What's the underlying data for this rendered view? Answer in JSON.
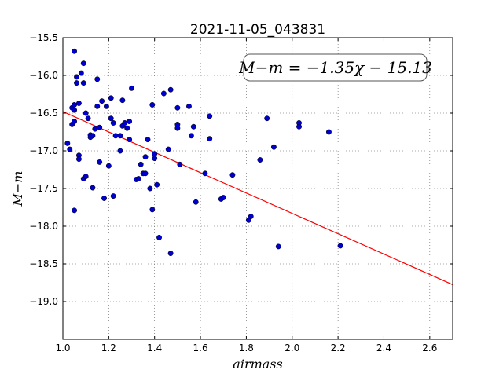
{
  "chart_data": {
    "type": "scatter",
    "title": "2021-11-05_043831",
    "xlabel": "airmass",
    "ylabel": "M−m",
    "xlim": [
      1.0,
      2.7
    ],
    "ylim": [
      -15.5,
      -19.5
    ],
    "y_inverted": true,
    "grid": true,
    "x_ticks": [
      "1.0",
      "1.2",
      "1.4",
      "1.6",
      "1.8",
      "2.0",
      "2.2",
      "2.4",
      "2.6"
    ],
    "y_ticks": [
      "−15.5",
      "−16.0",
      "−16.5",
      "−17.0",
      "−17.5",
      "−18.0",
      "−18.5",
      "−19.0"
    ],
    "annotation": "M−m = −1.35χ − 15.13",
    "fit_line": {
      "slope": -1.35,
      "intercept": -15.13,
      "color": "#ff0000"
    },
    "point_color": "#0000cc",
    "points": [
      [
        1.02,
        -16.9
      ],
      [
        1.03,
        -16.98
      ],
      [
        1.04,
        -16.65
      ],
      [
        1.04,
        -16.43
      ],
      [
        1.05,
        -16.39
      ],
      [
        1.05,
        -16.46
      ],
      [
        1.05,
        -16.61
      ],
      [
        1.05,
        -17.79
      ],
      [
        1.05,
        -15.68
      ],
      [
        1.06,
        -16.1
      ],
      [
        1.06,
        -16.02
      ],
      [
        1.07,
        -16.37
      ],
      [
        1.07,
        -17.06
      ],
      [
        1.07,
        -17.11
      ],
      [
        1.08,
        -15.97
      ],
      [
        1.09,
        -15.84
      ],
      [
        1.09,
        -16.1
      ],
      [
        1.09,
        -17.37
      ],
      [
        1.1,
        -17.34
      ],
      [
        1.1,
        -16.5
      ],
      [
        1.11,
        -16.57
      ],
      [
        1.12,
        -16.79
      ],
      [
        1.12,
        -16.82
      ],
      [
        1.13,
        -16.8
      ],
      [
        1.13,
        -17.49
      ],
      [
        1.14,
        -16.71
      ],
      [
        1.15,
        -16.41
      ],
      [
        1.15,
        -16.05
      ],
      [
        1.16,
        -17.15
      ],
      [
        1.16,
        -16.69
      ],
      [
        1.17,
        -16.34
      ],
      [
        1.18,
        -17.63
      ],
      [
        1.19,
        -16.41
      ],
      [
        1.2,
        -17.2
      ],
      [
        1.21,
        -16.3
      ],
      [
        1.21,
        -16.57
      ],
      [
        1.22,
        -16.63
      ],
      [
        1.22,
        -17.6
      ],
      [
        1.23,
        -16.8
      ],
      [
        1.25,
        -16.8
      ],
      [
        1.25,
        -17.0
      ],
      [
        1.26,
        -16.67
      ],
      [
        1.26,
        -16.33
      ],
      [
        1.27,
        -16.63
      ],
      [
        1.28,
        -16.7
      ],
      [
        1.29,
        -16.85
      ],
      [
        1.29,
        -16.61
      ],
      [
        1.3,
        -16.17
      ],
      [
        1.32,
        -17.38
      ],
      [
        1.33,
        -17.37
      ],
      [
        1.34,
        -17.18
      ],
      [
        1.35,
        -17.3
      ],
      [
        1.36,
        -17.08
      ],
      [
        1.36,
        -17.3
      ],
      [
        1.37,
        -16.85
      ],
      [
        1.38,
        -17.5
      ],
      [
        1.39,
        -16.39
      ],
      [
        1.39,
        -17.78
      ],
      [
        1.4,
        -17.04
      ],
      [
        1.4,
        -17.1
      ],
      [
        1.41,
        -17.45
      ],
      [
        1.42,
        -18.15
      ],
      [
        1.44,
        -16.24
      ],
      [
        1.46,
        -16.98
      ],
      [
        1.47,
        -16.19
      ],
      [
        1.47,
        -18.36
      ],
      [
        1.5,
        -16.43
      ],
      [
        1.5,
        -16.65
      ],
      [
        1.5,
        -16.7
      ],
      [
        1.51,
        -17.18
      ],
      [
        1.55,
        -16.41
      ],
      [
        1.56,
        -16.8
      ],
      [
        1.57,
        -16.68
      ],
      [
        1.58,
        -17.68
      ],
      [
        1.62,
        -17.3
      ],
      [
        1.64,
        -16.54
      ],
      [
        1.64,
        -16.84
      ],
      [
        1.69,
        -17.64
      ],
      [
        1.7,
        -17.62
      ],
      [
        1.74,
        -17.32
      ],
      [
        1.81,
        -17.92
      ],
      [
        1.82,
        -17.87
      ],
      [
        1.86,
        -17.12
      ],
      [
        1.89,
        -16.57
      ],
      [
        1.92,
        -16.95
      ],
      [
        1.94,
        -18.27
      ],
      [
        2.03,
        -16.63
      ],
      [
        2.03,
        -16.68
      ],
      [
        2.16,
        -16.75
      ],
      [
        2.21,
        -18.26
      ]
    ]
  }
}
